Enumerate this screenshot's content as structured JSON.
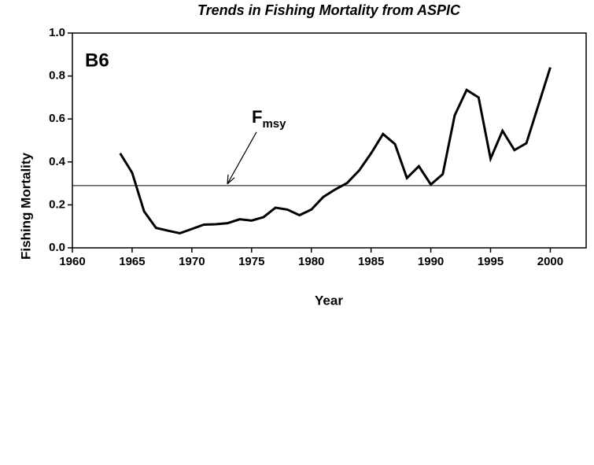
{
  "chart_data": {
    "type": "line",
    "title": "Trends in Fishing Mortality from ASPIC",
    "panel_label": "B6",
    "xlabel": "Year",
    "ylabel": "Fishing Mortality",
    "x": [
      1964,
      1965,
      1966,
      1967,
      1968,
      1969,
      1970,
      1971,
      1972,
      1973,
      1974,
      1975,
      1976,
      1977,
      1978,
      1979,
      1980,
      1981,
      1982,
      1983,
      1984,
      1985,
      1986,
      1987,
      1988,
      1989,
      1990,
      1991,
      1992,
      1993,
      1994,
      1995,
      1996,
      1997,
      1998,
      2000
    ],
    "series": [
      {
        "name": "Fishing Mortality",
        "color": "#000000",
        "values": [
          0.44,
          0.35,
          0.17,
          0.093,
          0.08,
          0.068,
          0.088,
          0.108,
          0.11,
          0.115,
          0.133,
          0.127,
          0.143,
          0.187,
          0.178,
          0.152,
          0.178,
          0.237,
          0.272,
          0.302,
          0.36,
          0.44,
          0.53,
          0.483,
          0.325,
          0.38,
          0.295,
          0.343,
          0.617,
          0.735,
          0.7,
          0.415,
          0.545,
          0.455,
          0.487,
          0.84
        ]
      }
    ],
    "reference_line": {
      "value": 0.29,
      "label": "F",
      "label_sub": "msy"
    },
    "xlim": [
      1960,
      2003
    ],
    "xticks": [
      1960,
      1965,
      1970,
      1975,
      1980,
      1985,
      1990,
      1995,
      2000
    ],
    "ylim": [
      0,
      1
    ],
    "yticks": [
      {
        "value": 0,
        "label": "0.0"
      },
      0.2,
      0.4,
      0.6,
      0.8,
      {
        "value": 1,
        "label": "1.0"
      }
    ]
  }
}
